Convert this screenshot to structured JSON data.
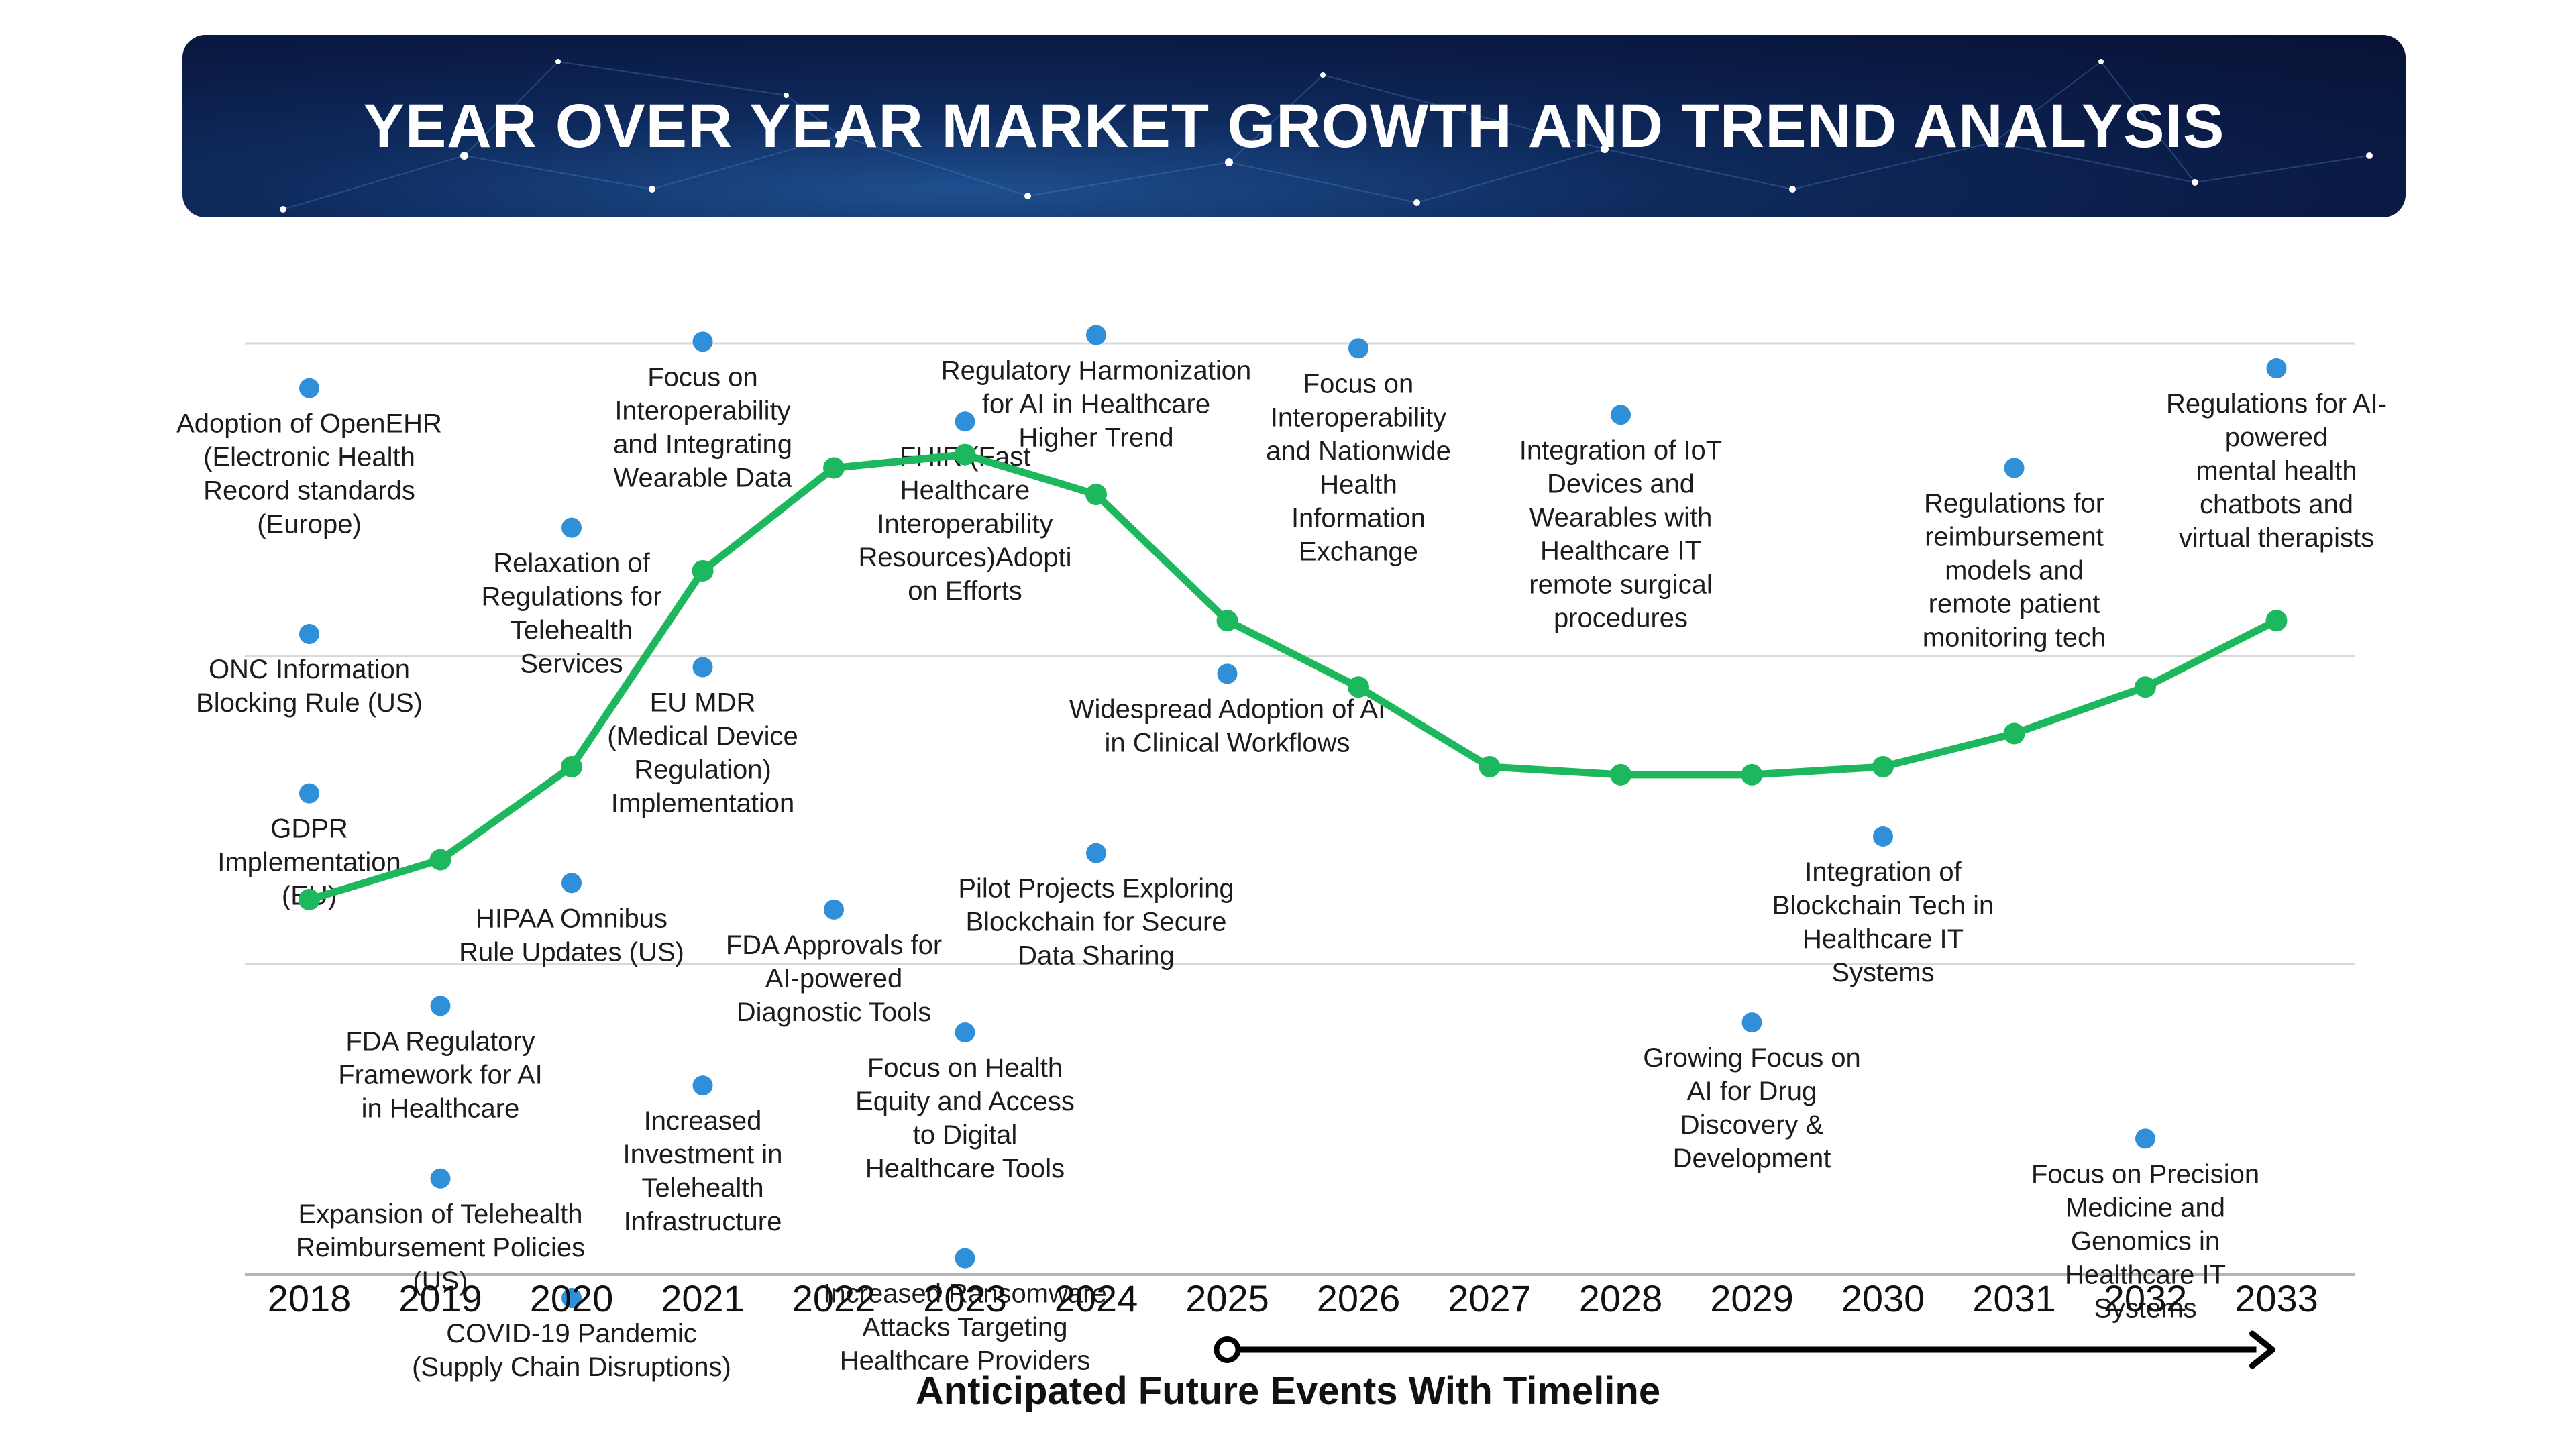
{
  "title": "YEAR OVER YEAR MARKET GROWTH AND TREND ANALYSIS",
  "timeline_caption": "Anticipated Future Events With Timeline",
  "colors": {
    "line": "#1db85e",
    "event_dot": "#2f8fd8",
    "banner": "#0a1a44",
    "grid": "#d9d9d9",
    "arrow": "#000000"
  },
  "chart_data": {
    "type": "line",
    "x": [
      "2018",
      "2019",
      "2020",
      "2021",
      "2022",
      "2023",
      "2024",
      "2025",
      "2026",
      "2027",
      "2028",
      "2029",
      "2030",
      "2031",
      "2032",
      "2033"
    ],
    "series": [
      {
        "values": [
          1.0,
          1.6,
          3.0,
          5.95,
          7.5,
          7.7,
          7.1,
          5.2,
          4.2,
          3.0,
          2.88,
          2.88,
          3.0,
          3.5,
          4.2,
          5.2
        ]
      }
    ],
    "ylim": [
      0,
      10
    ],
    "grid": true,
    "legend": "none",
    "events": [
      {
        "year": "2018",
        "level": 8.7,
        "lines": [
          "Adoption of OpenEHR",
          "(Electronic Health",
          "Record standards",
          "(Europe)"
        ]
      },
      {
        "year": "2018",
        "level": 5.0,
        "lines": [
          "ONC Information",
          "Blocking Rule (US)"
        ]
      },
      {
        "year": "2018",
        "level": 2.6,
        "lines": [
          "GDPR",
          "Implementation",
          "(EU)"
        ]
      },
      {
        "year": "2019",
        "level": -0.6,
        "lines": [
          "FDA Regulatory",
          "Framework for AI",
          "in Healthcare"
        ]
      },
      {
        "year": "2019",
        "level": -3.2,
        "lines": [
          "Expansion of Telehealth",
          "Reimbursement Policies",
          "(US)"
        ]
      },
      {
        "year": "2020",
        "level": 6.6,
        "lines": [
          "Relaxation of",
          "Regulations for",
          "Telehealth",
          "Services"
        ]
      },
      {
        "year": "2020",
        "level": 1.25,
        "lines": [
          "HIPAA Omnibus",
          "Rule Updates (US)"
        ]
      },
      {
        "year": "2020",
        "level": -5.0,
        "lines": [
          "COVID-19 Pandemic",
          "(Supply Chain Disruptions)"
        ]
      },
      {
        "year": "2021",
        "level": 9.4,
        "lines": [
          "Focus on",
          "Interoperability",
          "and Integrating",
          "Wearable Data"
        ]
      },
      {
        "year": "2021",
        "level": 4.5,
        "lines": [
          "EU MDR",
          "(Medical Device",
          "Regulation)",
          "Implementation"
        ]
      },
      {
        "year": "2021",
        "level": -1.8,
        "lines": [
          "Increased",
          "Investment in",
          "Telehealth",
          "Infrastructure"
        ]
      },
      {
        "year": "2022",
        "level": 0.85,
        "lines": [
          "FDA Approvals for",
          "AI-powered",
          "Diagnostic Tools"
        ]
      },
      {
        "year": "2023",
        "level": 8.2,
        "lines": [
          "FHIR (Fast",
          "Healthcare",
          "Interoperability",
          "Resources)Adopti",
          "on Efforts"
        ]
      },
      {
        "year": "2023",
        "level": -1.0,
        "lines": [
          "Focus on Health",
          "Equity and Access",
          "to Digital",
          "Healthcare Tools"
        ]
      },
      {
        "year": "2023",
        "level": -4.4,
        "lines": [
          "Increased Ransomware",
          "Attacks Targeting",
          "Healthcare Providers"
        ]
      },
      {
        "year": "2024",
        "level": 9.5,
        "lines": [
          "Regulatory Harmonization",
          "for AI in Healthcare",
          "Higher Trend"
        ]
      },
      {
        "year": "2024",
        "level": 1.7,
        "lines": [
          "Pilot Projects Exploring",
          "Blockchain for Secure",
          "Data Sharing"
        ]
      },
      {
        "year": "2025",
        "level": 4.4,
        "lines": [
          "Widespread Adoption of AI",
          "in Clinical Workflows"
        ]
      },
      {
        "year": "2026",
        "level": 9.3,
        "lines": [
          "Focus on",
          "Interoperability",
          "and Nationwide",
          "Health",
          "Information",
          "Exchange"
        ]
      },
      {
        "year": "2028",
        "level": 8.3,
        "lines": [
          "Integration of IoT",
          "Devices and",
          "Wearables with",
          "Healthcare IT",
          "remote surgical",
          "procedures"
        ]
      },
      {
        "year": "2029",
        "level": -0.85,
        "lines": [
          "Growing Focus on",
          "AI for Drug",
          "Discovery &",
          "Development"
        ]
      },
      {
        "year": "2030",
        "level": 1.95,
        "lines": [
          "Integration of",
          "Blockchain Tech in",
          "Healthcare IT",
          "Systems"
        ]
      },
      {
        "year": "2031",
        "level": 7.5,
        "lines": [
          "Regulations for",
          "reimbursement",
          "models and",
          "remote patient",
          "monitoring tech"
        ]
      },
      {
        "year": "2032",
        "level": -2.6,
        "lines": [
          "Focus on Precision",
          "Medicine and",
          "Genomics in",
          "Healthcare IT",
          "Systems"
        ]
      },
      {
        "year": "2033",
        "level": 9.0,
        "lines": [
          "Regulations for AI-",
          "powered",
          "mental health",
          "chatbots and",
          "virtual therapists"
        ]
      }
    ]
  }
}
